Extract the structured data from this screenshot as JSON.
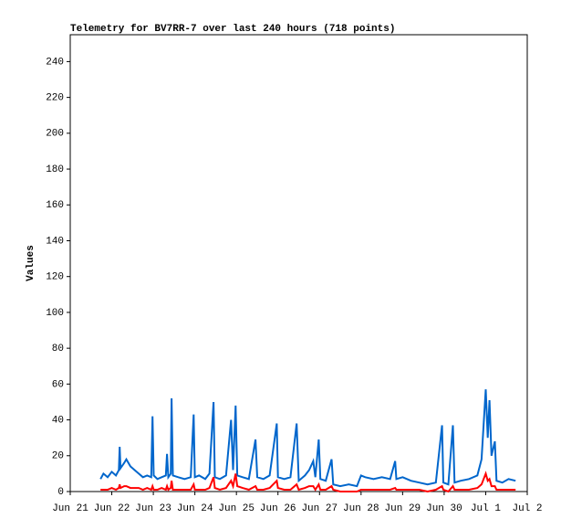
{
  "chart_data": {
    "type": "line",
    "title": "Telemetry for BV7RR-7 over last 240 hours (718 points)",
    "y_label": "Values",
    "xlim": [
      0,
      11
    ],
    "xticks": [
      {
        "value": 0,
        "label": "Jun 21"
      },
      {
        "value": 1,
        "label": "Jun 22"
      },
      {
        "value": 2,
        "label": "Jun 23"
      },
      {
        "value": 3,
        "label": "Jun 24"
      },
      {
        "value": 4,
        "label": "Jun 25"
      },
      {
        "value": 5,
        "label": "Jun 26"
      },
      {
        "value": 6,
        "label": "Jun 27"
      },
      {
        "value": 7,
        "label": "Jun 28"
      },
      {
        "value": 8,
        "label": "Jun 29"
      },
      {
        "value": 9,
        "label": "Jun 30"
      },
      {
        "value": 10,
        "label": "Jul 1"
      },
      {
        "value": 11,
        "label": "Jul 2"
      }
    ],
    "ylim": [
      0,
      255
    ],
    "yticks": [
      0,
      20,
      40,
      60,
      80,
      100,
      120,
      140,
      160,
      180,
      200,
      220,
      240
    ],
    "x": [
      0.73,
      0.8,
      0.9,
      1.0,
      1.1,
      1.17,
      1.19,
      1.21,
      1.3,
      1.35,
      1.45,
      1.55,
      1.65,
      1.75,
      1.85,
      1.95,
      1.98,
      2.01,
      2.1,
      2.2,
      2.3,
      2.33,
      2.36,
      2.42,
      2.44,
      2.47,
      2.6,
      2.75,
      2.9,
      2.97,
      3.0,
      3.1,
      3.25,
      3.35,
      3.45,
      3.48,
      3.6,
      3.75,
      3.87,
      3.92,
      3.98,
      4.02,
      4.15,
      4.3,
      4.46,
      4.5,
      4.65,
      4.8,
      4.97,
      5.0,
      5.15,
      5.3,
      5.45,
      5.5,
      5.65,
      5.75,
      5.85,
      5.9,
      5.98,
      6.02,
      6.15,
      6.29,
      6.33,
      6.5,
      6.7,
      6.9,
      7.0,
      7.1,
      7.3,
      7.5,
      7.7,
      7.82,
      7.85,
      8.0,
      8.2,
      8.4,
      8.6,
      8.8,
      8.95,
      8.98,
      9.1,
      9.21,
      9.25,
      9.4,
      9.6,
      9.8,
      9.9,
      10.0,
      10.05,
      10.09,
      10.14,
      10.22,
      10.26,
      10.4,
      10.55,
      10.72
    ],
    "series": [
      {
        "color": "#0066cc",
        "values": [
          7,
          10,
          8,
          11,
          9,
          12,
          25,
          13,
          16,
          18,
          14,
          12,
          10,
          8,
          9,
          8,
          42,
          9,
          7,
          8,
          9,
          21,
          8,
          10,
          52,
          9,
          8,
          7,
          8,
          43,
          8,
          9,
          7,
          10,
          50,
          8,
          7,
          9,
          40,
          12,
          48,
          9,
          8,
          7,
          29,
          8,
          7,
          9,
          38,
          8,
          7,
          8,
          38,
          6,
          9,
          12,
          17,
          8,
          29,
          7,
          6,
          18,
          4,
          3,
          4,
          3,
          9,
          8,
          7,
          8,
          7,
          17,
          7,
          8,
          6,
          5,
          4,
          5,
          37,
          5,
          4,
          37,
          5,
          6,
          7,
          9,
          18,
          57,
          30,
          51,
          20,
          28,
          6,
          5,
          7,
          6
        ]
      },
      {
        "color": "#ff0000",
        "values": [
          1,
          1,
          1,
          2,
          1,
          2,
          4,
          2,
          3,
          3,
          2,
          2,
          2,
          1,
          2,
          1,
          3,
          1,
          1,
          2,
          1,
          3,
          1,
          2,
          6,
          1,
          1,
          1,
          1,
          4,
          1,
          1,
          1,
          2,
          8,
          2,
          1,
          2,
          6,
          3,
          10,
          3,
          2,
          1,
          3,
          1,
          1,
          2,
          6,
          2,
          1,
          1,
          4,
          1,
          2,
          3,
          3,
          1,
          4,
          1,
          1,
          3,
          1,
          0,
          0,
          0,
          1,
          1,
          1,
          1,
          1,
          2,
          1,
          1,
          1,
          1,
          0,
          1,
          3,
          1,
          0,
          3,
          1,
          1,
          1,
          2,
          4,
          10,
          6,
          7,
          3,
          3,
          1,
          1,
          1,
          1
        ]
      }
    ]
  }
}
